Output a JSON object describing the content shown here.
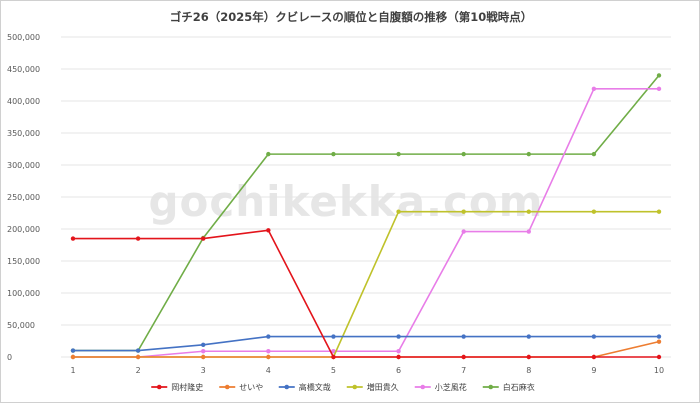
{
  "chart_data": {
    "type": "line",
    "title": "ゴチ26（2025年）クビレースの順位と自腹額の推移（第10戦時点）",
    "watermark": "gochikekka.com",
    "x": [
      1,
      2,
      3,
      4,
      5,
      6,
      7,
      8,
      9,
      10
    ],
    "ylim": [
      0,
      500000
    ],
    "yticks": [
      0,
      50000,
      100000,
      150000,
      200000,
      250000,
      300000,
      350000,
      400000,
      450000,
      500000
    ],
    "ytick_labels": [
      "0",
      "50,000",
      "100,000",
      "150,000",
      "200,000",
      "250,000",
      "300,000",
      "350,000",
      "400,000",
      "450,000",
      "500,000"
    ],
    "grid": "horizontal",
    "legend_position": "bottom",
    "series": [
      {
        "name": "白石麻衣",
        "color": "#70ad47",
        "values": [
          10000,
          10000,
          186000,
          317000,
          317000,
          317000,
          317000,
          317000,
          317000,
          440000
        ]
      },
      {
        "name": "小芝風花",
        "color": "#e87de8",
        "values": [
          0,
          0,
          9000,
          9000,
          9000,
          9000,
          196000,
          196000,
          419000,
          419000
        ]
      },
      {
        "name": "増田貴久",
        "color": "#bfc22b",
        "values": [
          0,
          0,
          0,
          0,
          0,
          227000,
          227000,
          227000,
          227000,
          227000
        ]
      },
      {
        "name": "高橋文哉",
        "color": "#4472c4",
        "values": [
          10000,
          10000,
          19000,
          32000,
          32000,
          32000,
          32000,
          32000,
          32000,
          32000
        ]
      },
      {
        "name": "せいや",
        "color": "#ed7d31",
        "values": [
          0,
          0,
          0,
          0,
          0,
          0,
          0,
          0,
          0,
          24000
        ]
      },
      {
        "name": "岡村隆史",
        "color": "#e3141b",
        "values": [
          185000,
          185000,
          185000,
          198000,
          0,
          0,
          0,
          0,
          0,
          0
        ]
      }
    ],
    "legend_order": [
      5,
      4,
      3,
      2,
      1,
      0
    ]
  }
}
